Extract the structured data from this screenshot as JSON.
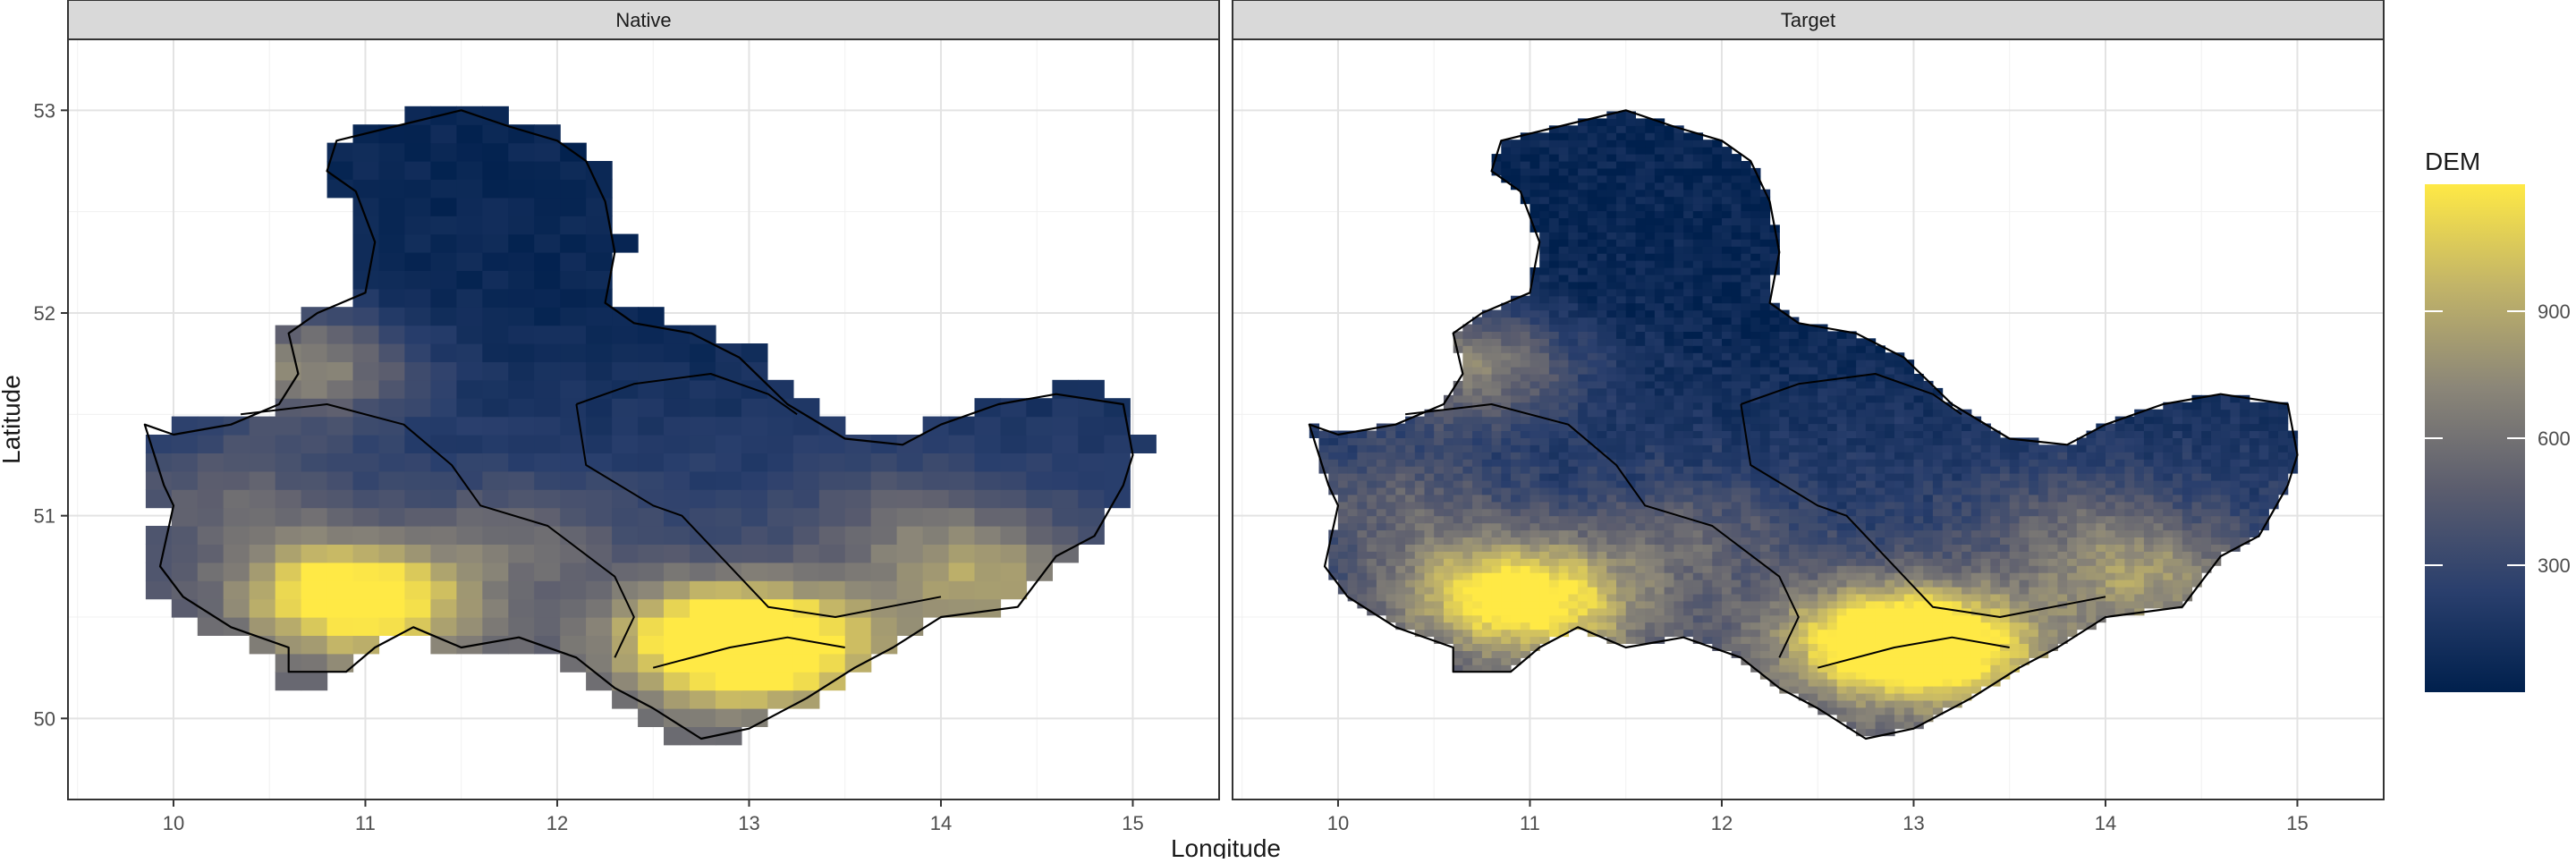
{
  "chart_data": {
    "type": "heatmap",
    "panels": [
      {
        "title": "Native",
        "resolution": "coarse"
      },
      {
        "title": "Target",
        "resolution": "fine"
      }
    ],
    "xlabel": "Longitude",
    "ylabel": "Latitude",
    "xlim": [
      9.45,
      15.45
    ],
    "ylim": [
      49.6,
      53.35
    ],
    "x_ticks": [
      10,
      11,
      12,
      13,
      14,
      15
    ],
    "y_ticks": [
      50,
      51,
      52,
      53
    ],
    "grid": true,
    "legend": {
      "title": "DEM",
      "placement": "right",
      "min": 0,
      "max": 1200,
      "ticks": [
        300,
        600,
        900
      ],
      "colors": [
        "#00204d",
        "#2a3f6d",
        "#5b5d6e",
        "#8b8678",
        "#c2b468",
        "#ffe945"
      ]
    },
    "region_outline": [
      [
        10.0,
        51.4
      ],
      [
        9.85,
        51.45
      ],
      [
        9.95,
        51.15
      ],
      [
        10.0,
        51.05
      ],
      [
        9.93,
        50.75
      ],
      [
        10.05,
        50.6
      ],
      [
        10.3,
        50.45
      ],
      [
        10.6,
        50.35
      ],
      [
        10.6,
        50.23
      ],
      [
        10.9,
        50.23
      ],
      [
        11.05,
        50.35
      ],
      [
        11.25,
        50.45
      ],
      [
        11.5,
        50.35
      ],
      [
        11.8,
        50.4
      ],
      [
        12.1,
        50.3
      ],
      [
        12.3,
        50.15
      ],
      [
        12.5,
        50.05
      ],
      [
        12.75,
        49.9
      ],
      [
        13.0,
        49.95
      ],
      [
        13.3,
        50.1
      ],
      [
        13.55,
        50.25
      ],
      [
        13.75,
        50.35
      ],
      [
        14.0,
        50.5
      ],
      [
        14.4,
        50.55
      ],
      [
        14.6,
        50.8
      ],
      [
        14.8,
        50.9
      ],
      [
        14.95,
        51.15
      ],
      [
        15.0,
        51.3
      ],
      [
        14.95,
        51.55
      ],
      [
        14.6,
        51.6
      ],
      [
        14.3,
        51.55
      ],
      [
        14.0,
        51.45
      ],
      [
        13.8,
        51.35
      ],
      [
        13.5,
        51.38
      ],
      [
        13.2,
        51.55
      ],
      [
        12.95,
        51.78
      ],
      [
        12.7,
        51.9
      ],
      [
        12.4,
        51.95
      ],
      [
        12.25,
        52.05
      ],
      [
        12.3,
        52.3
      ],
      [
        12.25,
        52.55
      ],
      [
        12.15,
        52.75
      ],
      [
        12.0,
        52.85
      ],
      [
        11.75,
        52.92
      ],
      [
        11.5,
        53.0
      ],
      [
        11.15,
        52.92
      ],
      [
        10.85,
        52.85
      ],
      [
        10.8,
        52.7
      ],
      [
        10.95,
        52.6
      ],
      [
        11.05,
        52.35
      ],
      [
        11.0,
        52.1
      ],
      [
        10.75,
        52.0
      ],
      [
        10.6,
        51.9
      ],
      [
        10.65,
        51.7
      ],
      [
        10.55,
        51.55
      ],
      [
        10.3,
        51.45
      ]
    ],
    "internal_boundaries": [
      [
        [
          10.35,
          51.5
        ],
        [
          10.8,
          51.55
        ],
        [
          11.2,
          51.45
        ],
        [
          11.45,
          51.25
        ],
        [
          11.6,
          51.05
        ],
        [
          11.95,
          50.95
        ],
        [
          12.3,
          50.7
        ],
        [
          12.4,
          50.5
        ],
        [
          12.3,
          50.3
        ]
      ],
      [
        [
          12.1,
          51.55
        ],
        [
          12.4,
          51.65
        ],
        [
          12.8,
          51.7
        ],
        [
          13.1,
          51.6
        ],
        [
          13.25,
          51.5
        ]
      ],
      [
        [
          12.1,
          51.55
        ],
        [
          12.15,
          51.25
        ],
        [
          12.5,
          51.05
        ],
        [
          12.65,
          51.0
        ],
        [
          12.9,
          50.75
        ],
        [
          13.1,
          50.55
        ],
        [
          13.45,
          50.5
        ],
        [
          14.0,
          50.6
        ]
      ],
      [
        [
          12.5,
          50.25
        ],
        [
          12.9,
          50.35
        ],
        [
          13.2,
          50.4
        ],
        [
          13.5,
          50.35
        ]
      ]
    ],
    "elevation_hotspots": [
      {
        "lon": 10.8,
        "lat": 50.65,
        "value": 900
      },
      {
        "lon": 11.1,
        "lat": 50.55,
        "value": 850
      },
      {
        "lon": 12.8,
        "lat": 50.4,
        "value": 1150
      },
      {
        "lon": 13.2,
        "lat": 50.35,
        "value": 1000
      },
      {
        "lon": 14.2,
        "lat": 50.7,
        "value": 800
      },
      {
        "lon": 10.7,
        "lat": 51.75,
        "value": 900
      },
      {
        "lon": 10.3,
        "lat": 51.1,
        "value": 550
      },
      {
        "lon": 11.8,
        "lat": 50.9,
        "value": 550
      },
      {
        "lon": 13.8,
        "lat": 51.0,
        "value": 500
      }
    ],
    "base_elevation": {
      "north_lat": 52.0,
      "north_value": 60,
      "south_lat": 50.0,
      "south_value": 480
    }
  }
}
